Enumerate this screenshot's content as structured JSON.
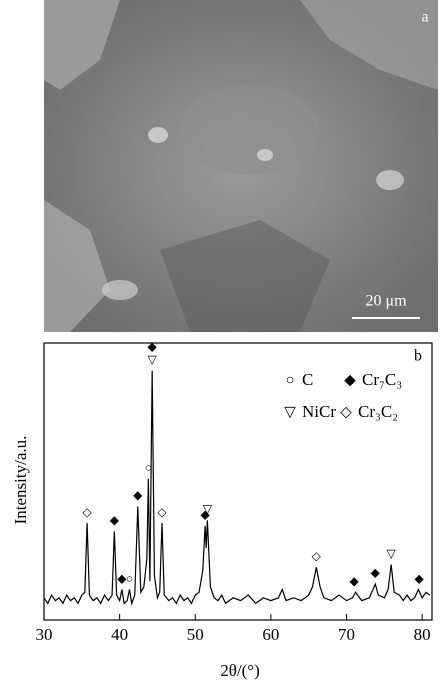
{
  "image": {
    "panel_label": "a",
    "scale_bar": "20 μm"
  },
  "chart_data": {
    "type": "line",
    "panel_label": "b",
    "x_label": "2θ/(°)",
    "y_label": "Intensity/a.u.",
    "xlim": [
      30,
      81.3
    ],
    "xticks": [
      30,
      40,
      50,
      60,
      70,
      80
    ],
    "ylim": [
      0,
      100
    ],
    "color": "#000000",
    "x": [
      30,
      30.5,
      31,
      31.5,
      32,
      32.5,
      33,
      33.5,
      34,
      34.5,
      35,
      35.4,
      35.7,
      36.0,
      36.5,
      37,
      37.5,
      38,
      38.5,
      39.0,
      39.3,
      39.6,
      40.0,
      40.3,
      40.6,
      41.0,
      41.3,
      41.6,
      42.0,
      42.4,
      42.8,
      43.2,
      43.6,
      43.8,
      44.0,
      44.3,
      44.6,
      45.0,
      45.3,
      45.6,
      45.9,
      46.5,
      47,
      47.5,
      48,
      48.5,
      49,
      49.5,
      50,
      50.5,
      51.0,
      51.3,
      51.45,
      51.6,
      52.0,
      52.5,
      53,
      53.5,
      54,
      55,
      56,
      57,
      58,
      59,
      60,
      61,
      61.5,
      62,
      63,
      64,
      65,
      65.5,
      66.0,
      66.5,
      67,
      68,
      69,
      70,
      70.8,
      71.2,
      72,
      73,
      73.5,
      73.8,
      74.2,
      75,
      75.5,
      75.9,
      76.3,
      77,
      77.5,
      78,
      78.5,
      79,
      79.5,
      80,
      80.5,
      81
    ],
    "values": [
      8,
      6,
      9,
      7,
      8,
      6,
      9,
      7,
      8,
      6,
      9,
      10,
      35,
      9,
      7,
      8,
      6,
      9,
      7,
      9,
      32,
      9,
      7,
      11,
      6,
      7,
      11,
      6,
      9,
      41,
      10,
      12,
      22,
      51,
      14,
      90,
      16,
      8,
      10,
      35,
      9,
      7,
      8,
      6,
      9,
      7,
      8,
      6,
      9,
      10,
      18,
      34,
      26,
      36,
      12,
      8,
      7,
      9,
      6,
      8,
      7,
      9,
      6,
      8,
      7,
      8,
      11,
      7,
      8,
      7,
      9,
      12,
      19,
      12,
      8,
      7,
      9,
      7,
      8,
      10,
      7,
      8,
      11,
      13,
      9,
      8,
      11,
      20,
      10,
      9,
      7,
      9,
      7,
      8,
      11,
      8,
      10,
      9
    ],
    "peak_markers": [
      {
        "x": 35.7,
        "symbol": "◇"
      },
      {
        "x": 39.3,
        "symbol": "◆"
      },
      {
        "x": 40.3,
        "symbol": "◆"
      },
      {
        "x": 41.3,
        "symbol": "○"
      },
      {
        "x": 42.4,
        "symbol": "◆"
      },
      {
        "x": 43.8,
        "symbol": "○"
      },
      {
        "x": 44.3,
        "symbol": "▽"
      },
      {
        "x": 44.3,
        "symbol": "◆"
      },
      {
        "x": 45.6,
        "symbol": "◇"
      },
      {
        "x": 51.3,
        "symbol": "◆"
      },
      {
        "x": 51.6,
        "symbol": "▽"
      },
      {
        "x": 66.0,
        "symbol": "◇"
      },
      {
        "x": 71.0,
        "symbol": "◆"
      },
      {
        "x": 73.8,
        "symbol": "◆"
      },
      {
        "x": 75.9,
        "symbol": "▽"
      },
      {
        "x": 79.6,
        "symbol": "◆"
      }
    ],
    "legend": [
      {
        "symbol": "○",
        "name": "C"
      },
      {
        "symbol": "◆",
        "name": "Cr₇C₃"
      },
      {
        "symbol": "▽",
        "name": "NiCr"
      },
      {
        "symbol": "◇",
        "name": "Cr₃C₂"
      }
    ]
  }
}
